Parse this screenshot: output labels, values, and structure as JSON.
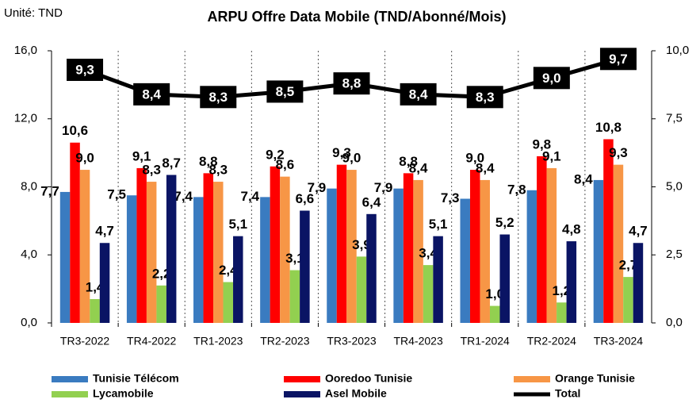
{
  "chart_data": {
    "type": "bar",
    "title": "ARPU Offre Data Mobile (TND/Abonné/Mois)",
    "unit_label": "Unité: TND",
    "categories": [
      "TR3-2022",
      "TR4-2022",
      "TR1-2023",
      "TR2-2023",
      "TR3-2023",
      "TR4-2023",
      "TR1-2024",
      "TR2-2024",
      "TR3-2024"
    ],
    "series": [
      {
        "name": "Tunisie Télécom",
        "color": "#3a7bc0",
        "values": [
          7.7,
          7.5,
          7.4,
          7.4,
          7.9,
          7.9,
          7.3,
          7.8,
          8.4
        ],
        "value_labels": [
          "7,7",
          "7,5",
          "7,4",
          "7,4",
          "7,9",
          "7,9",
          "7,3",
          "7,8",
          "8,4"
        ]
      },
      {
        "name": "Ooredoo Tunisie",
        "color": "#ff0000",
        "values": [
          10.6,
          9.1,
          8.8,
          9.2,
          9.3,
          8.8,
          9.0,
          9.8,
          10.8
        ],
        "value_labels": [
          "10,6",
          "9,1",
          "8,8",
          "9,2",
          "9,3",
          "8,8",
          "9,0",
          "9,8",
          "10,8"
        ]
      },
      {
        "name": "Orange Tunisie",
        "color": "#f79646",
        "values": [
          9.0,
          8.3,
          8.3,
          8.6,
          9.0,
          8.4,
          8.4,
          9.1,
          9.3
        ],
        "value_labels": [
          "9,0",
          "8,3",
          "8,3",
          "8,6",
          "9,0",
          "8,4",
          "8,4",
          "9,1",
          "9,3"
        ]
      },
      {
        "name": "Lycamobile",
        "color": "#92d050",
        "values": [
          1.4,
          2.2,
          2.4,
          3.1,
          3.9,
          3.4,
          1.0,
          1.2,
          2.7
        ],
        "value_labels": [
          "1,4",
          "2,2",
          "2,4",
          "3,1",
          "3,9",
          "3,4",
          "1,0",
          "1,2",
          "2,7"
        ]
      },
      {
        "name": "Asel Mobile",
        "color": "#0a1464",
        "values": [
          4.7,
          8.7,
          5.1,
          6.6,
          6.4,
          5.1,
          5.2,
          4.8,
          4.7
        ],
        "value_labels": [
          "4,7",
          "8,7",
          "5,1",
          "6,6",
          "6,4",
          "5,1",
          "5,2",
          "4,8",
          "4,7"
        ]
      },
      {
        "name": "Total",
        "color": "#000000",
        "type": "line",
        "axis": "y2",
        "values": [
          9.3,
          8.4,
          8.3,
          8.5,
          8.8,
          8.4,
          8.3,
          9.0,
          9.7
        ],
        "value_labels": [
          "9,3",
          "8,4",
          "8,3",
          "8,5",
          "8,8",
          "8,4",
          "8,3",
          "9,0",
          "9,7"
        ]
      }
    ],
    "ylim": [
      0,
      16
    ],
    "yticks": [
      {
        "value": 0,
        "label": "0,0"
      },
      {
        "value": 4,
        "label": "4,0"
      },
      {
        "value": 8,
        "label": "8,0"
      },
      {
        "value": 12,
        "label": "12,0"
      },
      {
        "value": 16,
        "label": "16,0"
      }
    ],
    "y2lim": [
      0,
      10
    ],
    "y2ticks": [
      {
        "value": 0,
        "label": "0,0"
      },
      {
        "value": 2.5,
        "label": "2,5"
      },
      {
        "value": 5,
        "label": "5,0"
      },
      {
        "value": 7.5,
        "label": "7,5"
      },
      {
        "value": 10,
        "label": "10,0"
      }
    ]
  }
}
